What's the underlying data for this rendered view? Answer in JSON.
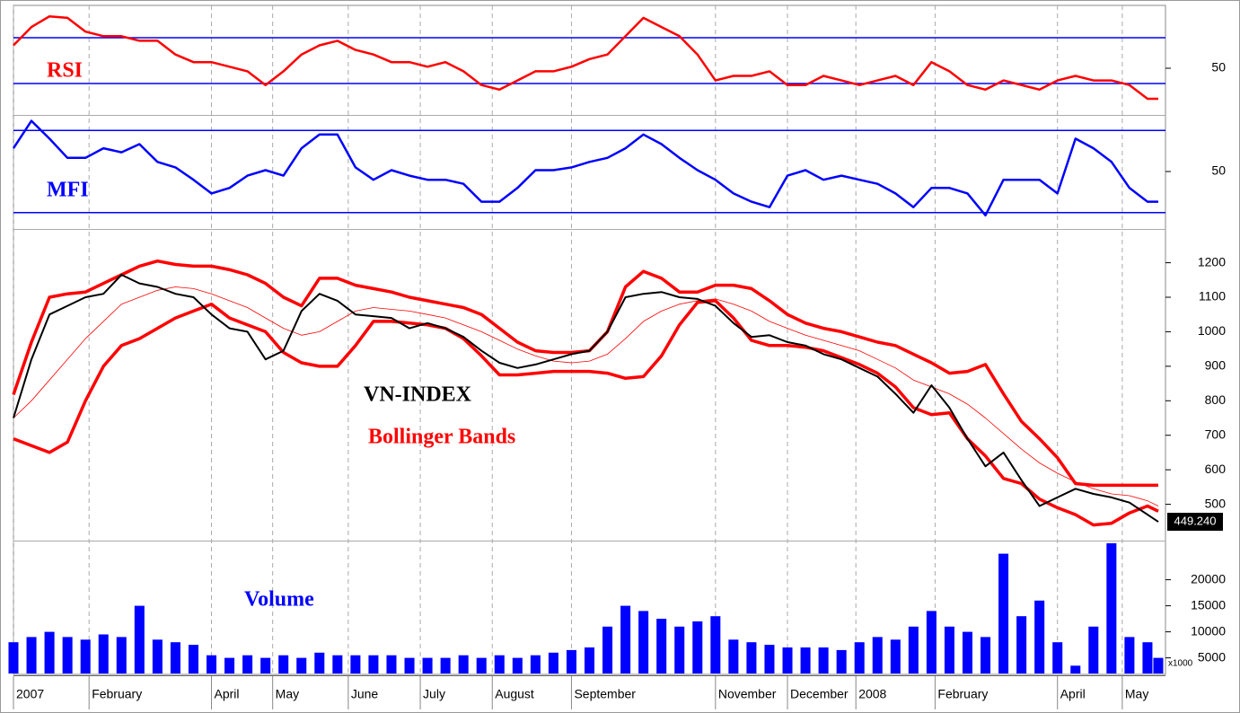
{
  "chart_data": [
    {
      "type": "line",
      "panel": "rsi",
      "x": [
        0,
        5,
        10,
        15,
        20,
        25,
        30,
        35,
        40,
        45,
        50,
        55,
        60,
        65,
        70,
        75,
        80,
        85,
        90,
        95,
        100,
        105,
        110,
        115,
        120,
        125,
        130,
        135,
        140,
        145,
        150,
        155,
        160,
        165,
        170,
        175,
        180,
        185,
        190,
        195,
        200,
        205,
        210,
        215,
        220,
        225,
        230,
        235,
        240,
        245,
        250,
        255,
        260,
        265,
        270,
        275,
        280,
        285,
        290,
        295,
        300,
        305,
        310,
        315,
        318
      ],
      "xlim": [
        0,
        320
      ],
      "ylim": [
        20,
        90
      ],
      "yticks": [
        50
      ],
      "reference_lines": [
        70,
        40
      ],
      "reference_color": "#0000ff",
      "series": [
        {
          "name": "RSI",
          "color": "#ff0000",
          "values": [
            65,
            77,
            84,
            83,
            74,
            71,
            71,
            68,
            68,
            59,
            54,
            54,
            51,
            48,
            39,
            48,
            59,
            65,
            68,
            62,
            59,
            54,
            54,
            51,
            54,
            48,
            39,
            36,
            42,
            48,
            48,
            51,
            56,
            59,
            71,
            83,
            77,
            71,
            59,
            42,
            45,
            45,
            48,
            39,
            39,
            45,
            42,
            39,
            42,
            45,
            39,
            54,
            48,
            39,
            36,
            42,
            39,
            36,
            42,
            45,
            42,
            42,
            39,
            30,
            30
          ]
        }
      ]
    },
    {
      "type": "line",
      "panel": "mfi",
      "x": [
        0,
        5,
        10,
        15,
        20,
        25,
        30,
        35,
        40,
        45,
        50,
        55,
        60,
        65,
        70,
        75,
        80,
        85,
        90,
        95,
        100,
        105,
        110,
        115,
        120,
        125,
        130,
        135,
        140,
        145,
        150,
        155,
        160,
        165,
        170,
        175,
        180,
        185,
        190,
        195,
        200,
        205,
        210,
        215,
        220,
        225,
        230,
        235,
        240,
        245,
        250,
        255,
        260,
        265,
        270,
        275,
        280,
        285,
        290,
        295,
        300,
        305,
        310,
        315,
        318
      ],
      "xlim": [
        0,
        320
      ],
      "ylim": [
        10,
        90
      ],
      "yticks": [
        50
      ],
      "reference_lines": [
        80,
        20
      ],
      "reference_color": "#0000ff",
      "series": [
        {
          "name": "MFI",
          "color": "#0000ff",
          "values": [
            67,
            87,
            74,
            60,
            60,
            67,
            64,
            70,
            57,
            53,
            44,
            34,
            38,
            47,
            51,
            47,
            67,
            77,
            77,
            53,
            44,
            51,
            47,
            44,
            44,
            41,
            28,
            28,
            38,
            51,
            51,
            53,
            57,
            60,
            67,
            77,
            70,
            60,
            51,
            44,
            34,
            28,
            24,
            47,
            51,
            44,
            47,
            44,
            41,
            34,
            24,
            38,
            38,
            34,
            18,
            44,
            44,
            44,
            34,
            74,
            67,
            57,
            38,
            28,
            28
          ]
        }
      ]
    },
    {
      "type": "line",
      "panel": "price",
      "x": [
        0,
        5,
        10,
        15,
        20,
        25,
        30,
        35,
        40,
        45,
        50,
        55,
        60,
        65,
        70,
        75,
        80,
        85,
        90,
        95,
        100,
        105,
        110,
        115,
        120,
        125,
        130,
        135,
        140,
        145,
        150,
        155,
        160,
        165,
        170,
        175,
        180,
        185,
        190,
        195,
        200,
        205,
        210,
        215,
        220,
        225,
        230,
        235,
        240,
        245,
        250,
        255,
        260,
        265,
        270,
        275,
        280,
        285,
        290,
        295,
        300,
        305,
        310,
        315,
        318
      ],
      "xlim": [
        0,
        320
      ],
      "ylim": [
        400,
        1290
      ],
      "yticks": [
        500,
        600,
        700,
        800,
        900,
        1000,
        1100,
        1200
      ],
      "series": [
        {
          "name": "VN-INDEX",
          "color": "#000000",
          "values": [
            750,
            920,
            1050,
            1075,
            1100,
            1110,
            1165,
            1140,
            1130,
            1110,
            1100,
            1050,
            1010,
            1000,
            920,
            945,
            1060,
            1110,
            1090,
            1050,
            1045,
            1040,
            1010,
            1025,
            1010,
            985,
            945,
            910,
            895,
            905,
            920,
            935,
            945,
            1000,
            1100,
            1110,
            1115,
            1100,
            1095,
            1075,
            1025,
            985,
            990,
            970,
            960,
            935,
            920,
            895,
            870,
            820,
            765,
            845,
            780,
            690,
            610,
            650,
            570,
            495,
            520,
            545,
            530,
            520,
            505,
            470,
            449.24
          ]
        }
      ],
      "bands": {
        "name": "Bollinger Bands",
        "color": "#ff0000",
        "upper": [
          818,
          970,
          1100,
          1110,
          1115,
          1140,
          1165,
          1190,
          1205,
          1195,
          1190,
          1190,
          1180,
          1165,
          1140,
          1100,
          1075,
          1155,
          1155,
          1135,
          1125,
          1115,
          1100,
          1090,
          1080,
          1070,
          1050,
          1010,
          970,
          945,
          940,
          940,
          945,
          1000,
          1130,
          1175,
          1155,
          1115,
          1115,
          1135,
          1135,
          1125,
          1090,
          1050,
          1025,
          1010,
          1000,
          985,
          970,
          960,
          935,
          910,
          880,
          885,
          905,
          820,
          740,
          690,
          635,
          560,
          555,
          555,
          555,
          555,
          555
        ],
        "middle": [
          750,
          800,
          860,
          920,
          980,
          1030,
          1080,
          1100,
          1120,
          1130,
          1125,
          1110,
          1090,
          1070,
          1040,
          1010,
          990,
          1000,
          1030,
          1060,
          1070,
          1065,
          1060,
          1050,
          1040,
          1020,
          1000,
          975,
          950,
          930,
          915,
          910,
          915,
          935,
          980,
          1030,
          1060,
          1080,
          1090,
          1095,
          1080,
          1060,
          1030,
          1010,
          990,
          975,
          960,
          945,
          920,
          895,
          860,
          840,
          820,
          790,
          750,
          705,
          660,
          620,
          590,
          565,
          545,
          530,
          525,
          510,
          495
        ],
        "lower": [
          690,
          670,
          650,
          680,
          800,
          900,
          960,
          980,
          1010,
          1040,
          1060,
          1080,
          1040,
          1020,
          1000,
          940,
          910,
          900,
          900,
          960,
          1030,
          1030,
          1025,
          1020,
          1010,
          980,
          930,
          875,
          875,
          880,
          885,
          885,
          885,
          880,
          865,
          870,
          930,
          1020,
          1085,
          1090,
          1040,
          975,
          960,
          960,
          955,
          945,
          925,
          905,
          880,
          840,
          780,
          760,
          765,
          690,
          640,
          575,
          560,
          515,
          490,
          470,
          440,
          445,
          475,
          495,
          480
        ]
      },
      "price_tag": {
        "value": 449.24,
        "label": "449.240"
      }
    },
    {
      "type": "bar",
      "panel": "volume",
      "x": [
        0,
        5,
        10,
        15,
        20,
        25,
        30,
        35,
        40,
        45,
        50,
        55,
        60,
        65,
        70,
        75,
        80,
        85,
        90,
        95,
        100,
        105,
        110,
        115,
        120,
        125,
        130,
        135,
        140,
        145,
        150,
        155,
        160,
        165,
        170,
        175,
        180,
        185,
        190,
        195,
        200,
        205,
        210,
        215,
        220,
        225,
        230,
        235,
        240,
        245,
        250,
        255,
        260,
        265,
        270,
        275,
        280,
        285,
        290,
        295,
        300,
        305,
        310,
        315,
        318
      ],
      "xlim": [
        0,
        320
      ],
      "ylim": [
        2000,
        27000
      ],
      "yticks": [
        5000,
        10000,
        15000,
        20000
      ],
      "unit_label": "x1000",
      "xticks": [
        {
          "value": 0,
          "label": "2007"
        },
        {
          "value": 21,
          "label": "February"
        },
        {
          "value": 55,
          "label": "April"
        },
        {
          "value": 72,
          "label": "May"
        },
        {
          "value": 93,
          "label": "June"
        },
        {
          "value": 113,
          "label": "July"
        },
        {
          "value": 133,
          "label": "August"
        },
        {
          "value": 155,
          "label": "September"
        },
        {
          "value": 195,
          "label": "November"
        },
        {
          "value": 215,
          "label": "December"
        },
        {
          "value": 234,
          "label": "2008"
        },
        {
          "value": 256,
          "label": "February"
        },
        {
          "value": 290,
          "label": "April"
        },
        {
          "value": 308,
          "label": "May"
        }
      ],
      "series": [
        {
          "name": "Volume",
          "color": "#0000ff",
          "values": [
            8000,
            9000,
            10000,
            9000,
            8500,
            9500,
            9000,
            15000,
            8500,
            8000,
            7500,
            5500,
            5000,
            5500,
            5000,
            5500,
            5000,
            6000,
            5500,
            5500,
            5500,
            5500,
            5000,
            5000,
            5000,
            5500,
            5000,
            5500,
            5000,
            5500,
            6000,
            6500,
            7000,
            11000,
            15000,
            14000,
            12500,
            11000,
            12000,
            13000,
            8500,
            8000,
            7500,
            7000,
            7000,
            7000,
            6500,
            8000,
            9000,
            8500,
            11000,
            14000,
            11000,
            10000,
            9000,
            25000,
            13000,
            16000,
            8000,
            3500,
            11000,
            27000,
            9000,
            8000,
            5000
          ]
        }
      ]
    }
  ]
}
